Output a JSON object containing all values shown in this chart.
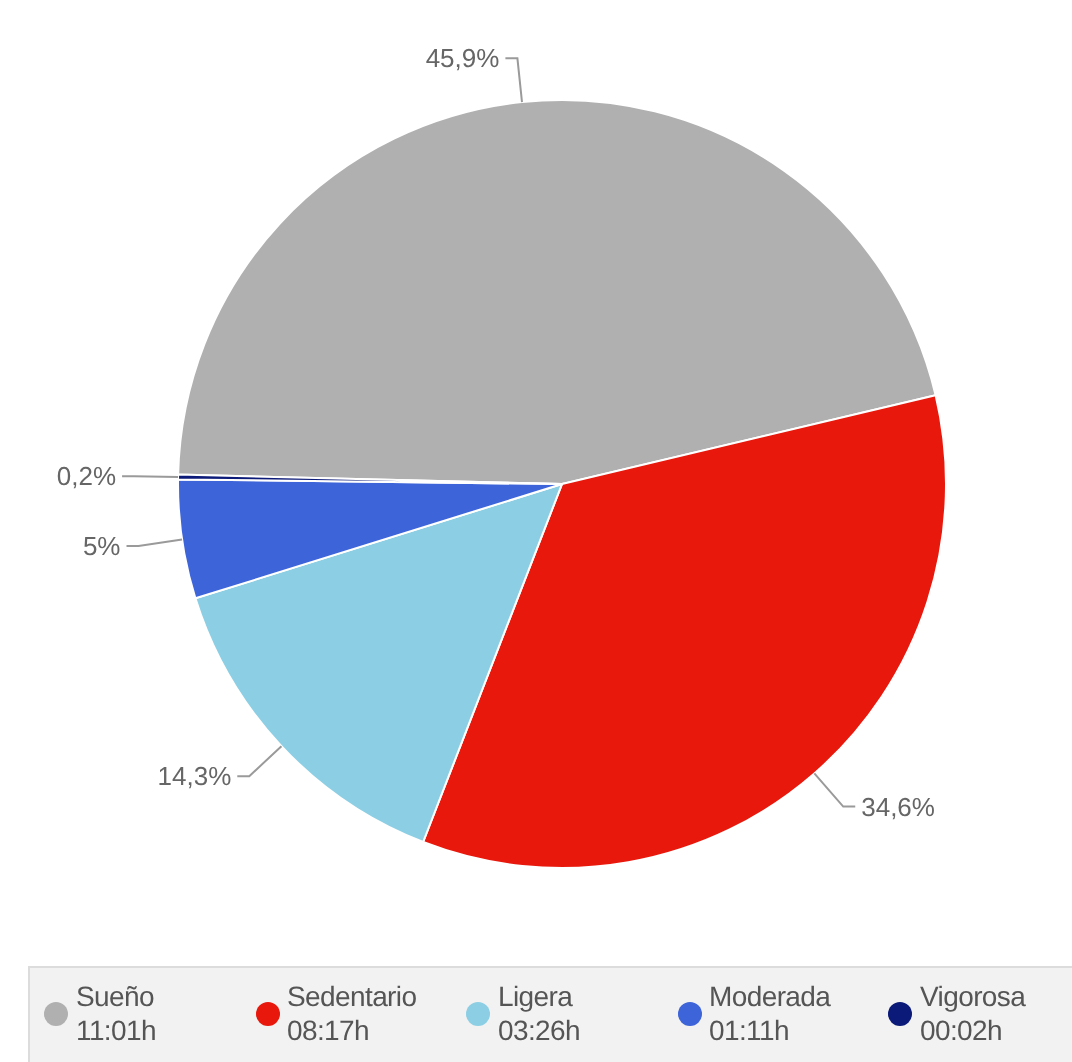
{
  "chart_data": {
    "type": "pie",
    "categories": [
      "Sueño\n11:01h",
      "Sedentario\n08:17h",
      "Ligera\n03:26h",
      "Moderada\n01:11h",
      "Vigorosa\n00:02h"
    ],
    "values": [
      45.9,
      34.6,
      14.3,
      5,
      0.2
    ],
    "colors": [
      "#b0b0b0",
      "#e8180c",
      "#8ccfe4",
      "#3d64d8",
      "#0b1a78"
    ],
    "value_labels": [
      "45,9%",
      "34,6%",
      "14,3%",
      "5%",
      "0,2%"
    ],
    "legend": "bottom"
  }
}
